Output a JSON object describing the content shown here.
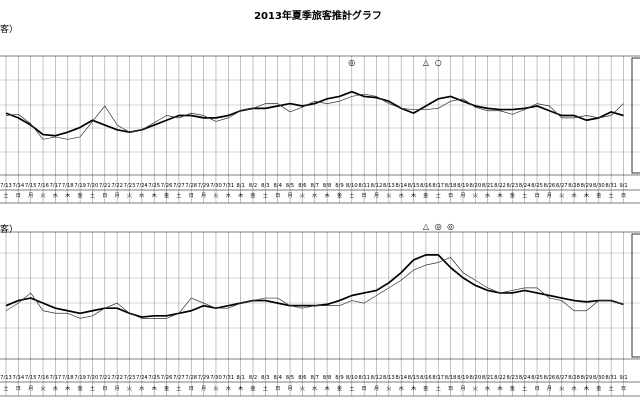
{
  "chart_data": {
    "type": "line",
    "title": "2013年夏季旅客推計グラフ",
    "dates": [
      "7/13",
      "7/14",
      "7/15",
      "7/16",
      "7/17",
      "7/18",
      "7/19",
      "7/20",
      "7/21",
      "7/22",
      "7/23",
      "7/24",
      "7/25",
      "7/26",
      "7/27",
      "7/28",
      "7/29",
      "7/30",
      "7/31",
      "8/1",
      "8/2",
      "8/3",
      "8/4",
      "8/5",
      "8/6",
      "8/7",
      "8/8",
      "8/9",
      "8/10",
      "8/11",
      "8/12",
      "8/13",
      "8/14",
      "8/15",
      "8/16",
      "8/17",
      "8/18",
      "8/19",
      "8/20",
      "8/21",
      "8/22",
      "8/23",
      "8/24",
      "8/25",
      "8/26",
      "8/27",
      "8/28",
      "8/29",
      "8/30",
      "8/31",
      "9/1"
    ],
    "weekdays": [
      "土",
      "日",
      "月",
      "火",
      "水",
      "木",
      "金",
      "土",
      "日",
      "月",
      "火",
      "水",
      "木",
      "金",
      "土",
      "日",
      "月",
      "火",
      "水",
      "木",
      "金",
      "土",
      "日",
      "月",
      "火",
      "水",
      "木",
      "金",
      "土",
      "日",
      "月",
      "火",
      "水",
      "木",
      "金",
      "土",
      "日",
      "月",
      "火",
      "水",
      "木",
      "金",
      "土",
      "日",
      "月",
      "火",
      "水",
      "木",
      "金",
      "土",
      "日"
    ],
    "panels": [
      {
        "unit_label": "客）",
        "ylim": [
          0,
          100
        ],
        "markers": [
          {
            "date": "8/10",
            "symbol": "◎"
          },
          {
            "date": "8/16",
            "symbol": "△"
          },
          {
            "date": "8/17",
            "symbol": "○"
          }
        ],
        "series": [
          {
            "values": [
              52,
              48,
              42,
              34,
              33,
              36,
              40,
              46,
              42,
              38,
              36,
              38,
              42,
              46,
              50,
              50,
              48,
              48,
              50,
              54,
              56,
              56,
              58,
              60,
              58,
              60,
              64,
              66,
              70,
              66,
              65,
              62,
              56,
              52,
              58,
              64,
              66,
              62,
              58,
              56,
              55,
              55,
              56,
              58,
              54,
              50,
              50,
              46,
              48,
              53,
              50
            ]
          },
          {
            "values": [
              50,
              51,
              43,
              30,
              32,
              30,
              32,
              45,
              58,
              42,
              36,
              38,
              44,
              50,
              48,
              52,
              50,
              45,
              48,
              54,
              56,
              60,
              60,
              53,
              57,
              62,
              60,
              62,
              66,
              68,
              66,
              60,
              56,
              55,
              55,
              56,
              62,
              64,
              57,
              54,
              54,
              51,
              55,
              60,
              58,
              48,
              48,
              50,
              48,
              50,
              60
            ]
          }
        ]
      },
      {
        "unit_label": "客）",
        "ylim": [
          0,
          100
        ],
        "markers": [
          {
            "date": "8/16",
            "symbol": "△"
          },
          {
            "date": "8/17",
            "symbol": "◎"
          },
          {
            "date": "8/18",
            "symbol": "◎"
          }
        ],
        "series": [
          {
            "values": [
              42,
              46,
              48,
              44,
              40,
              38,
              36,
              38,
              40,
              40,
              36,
              33,
              34,
              34,
              36,
              38,
              42,
              40,
              42,
              44,
              46,
              46,
              44,
              42,
              42,
              42,
              43,
              46,
              50,
              52,
              54,
              60,
              68,
              78,
              82,
              82,
              72,
              64,
              58,
              54,
              52,
              52,
              54,
              52,
              50,
              48,
              46,
              45,
              46,
              46,
              43
            ]
          },
          {
            "values": [
              38,
              44,
              52,
              38,
              36,
              36,
              32,
              34,
              40,
              44,
              36,
              32,
              32,
              32,
              36,
              48,
              44,
              40,
              40,
              44,
              46,
              48,
              48,
              42,
              40,
              42,
              42,
              42,
              46,
              44,
              50,
              56,
              62,
              70,
              74,
              76,
              80,
              68,
              62,
              56,
              52,
              54,
              56,
              56,
              48,
              46,
              38,
              38,
              46,
              46,
              43
            ]
          }
        ]
      }
    ]
  }
}
